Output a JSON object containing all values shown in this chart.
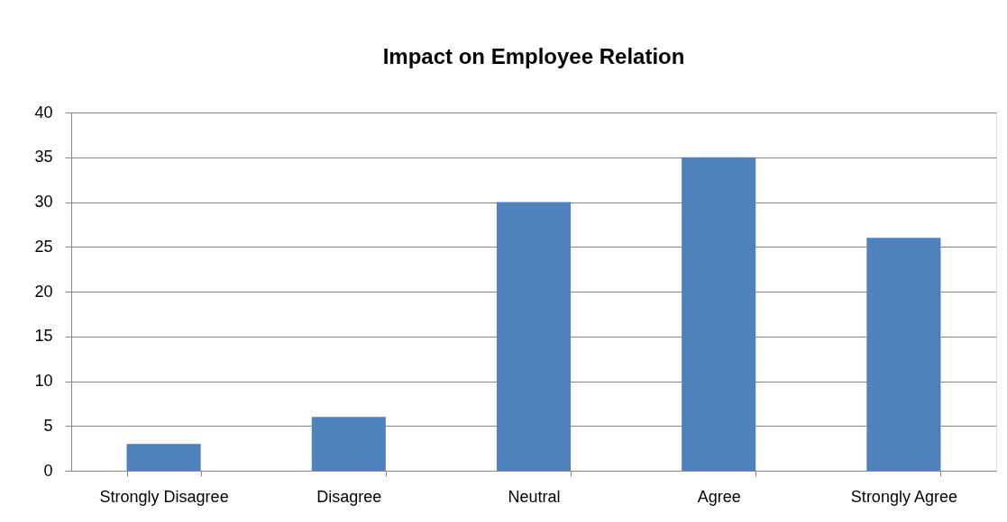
{
  "chart_data": {
    "type": "bar",
    "title": "Impact on Employee Relation",
    "categories": [
      "Strongly Disagree",
      "Disagree",
      "Neutral",
      "Agree",
      "Strongly Agree"
    ],
    "values": [
      3,
      6,
      30,
      35,
      26
    ],
    "color": "#4f81bd",
    "ylim": [
      0,
      40
    ],
    "yticks": [
      0,
      5,
      10,
      15,
      20,
      25,
      30,
      35,
      40
    ],
    "grid": "y"
  }
}
